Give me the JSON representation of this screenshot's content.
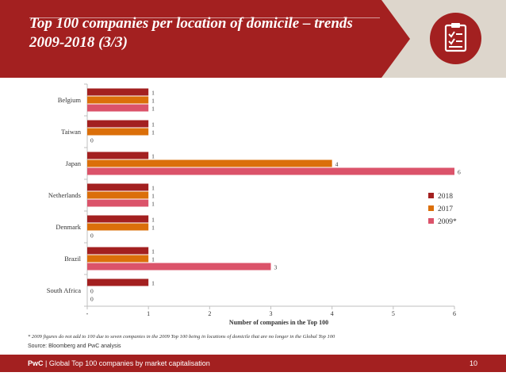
{
  "header": {
    "title": "Top 100 companies per location of domicile – trends 2009-2018 (3/3)",
    "icon": "clipboard-checklist-icon"
  },
  "footer": {
    "brand": "PwC",
    "separator": " | ",
    "text": "Global Top 100 companies by market capitalisation",
    "page": "10"
  },
  "footnote": "* 2009 figures do not add to 100 due to seven companies in the 2009 Top 100 being in locations of domicile that are no longer in the Global Top 100",
  "source": "Source: Bloomberg and PwC analysis",
  "colors": {
    "brand": "#a32020",
    "s2018": "#a32020",
    "s2017": "#db6f0a",
    "s2009": "#db536a",
    "panel": "#ddd6cc"
  },
  "chart_data": {
    "type": "bar",
    "orientation": "horizontal",
    "categories": [
      "Belgium",
      "Taiwan",
      "Japan",
      "Netherlands",
      "Denmark",
      "Brazil",
      "South Africa"
    ],
    "series": [
      {
        "name": "2018",
        "values": [
          1,
          1,
          1,
          1,
          1,
          1,
          1
        ]
      },
      {
        "name": "2017",
        "values": [
          1,
          1,
          4,
          1,
          1,
          1,
          0
        ]
      },
      {
        "name": "2009*",
        "values": [
          1,
          0,
          6,
          1,
          0,
          3,
          0
        ]
      }
    ],
    "xlabel": "Number of companies in the Top 100",
    "xlim": [
      0,
      6
    ],
    "xticks": [
      "-",
      "1",
      "2",
      "3",
      "4",
      "5",
      "6"
    ],
    "legend": "right",
    "grid": false
  }
}
